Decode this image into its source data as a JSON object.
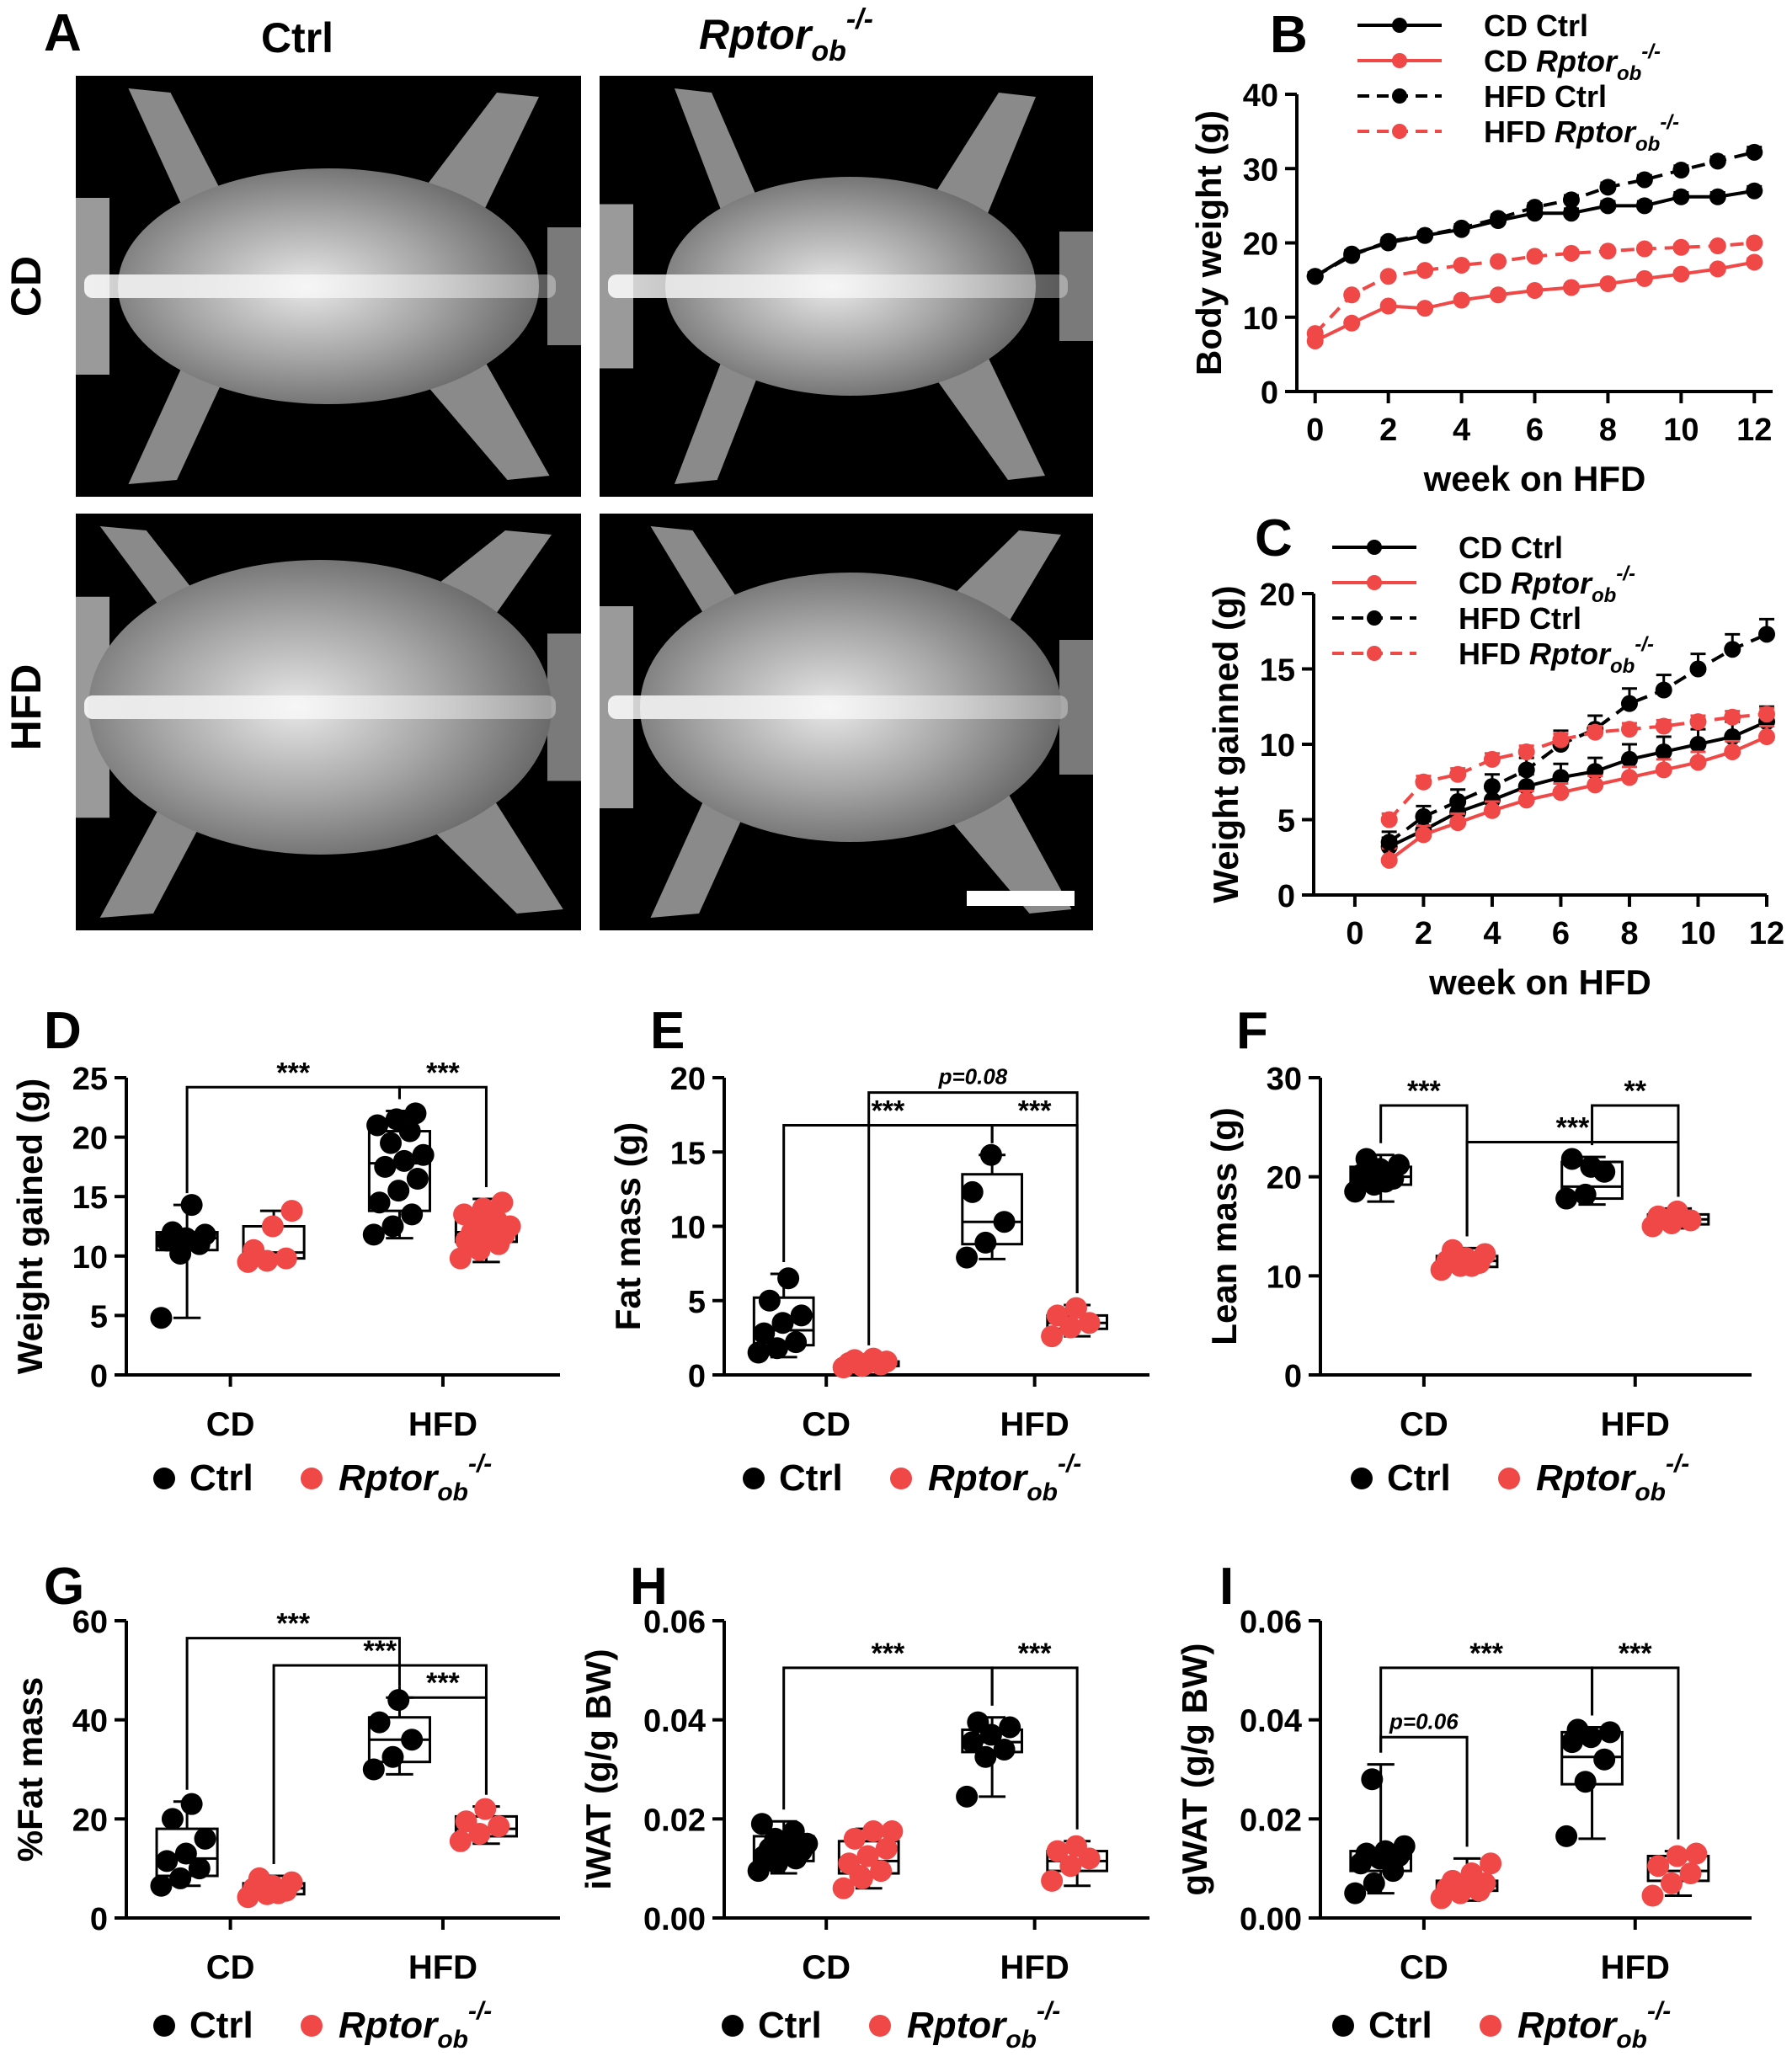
{
  "colors": {
    "ctrl": "#000000",
    "ko": "#f04747",
    "bg": "#ffffff",
    "xray_bg": "#000000"
  },
  "panel_a": {
    "letter": "A",
    "col_ctrl": "Ctrl",
    "col_ko_base": "Rptor",
    "col_ko_sub": "ob",
    "col_ko_sup": "-/-",
    "row_cd": "CD",
    "row_hfd": "HFD"
  },
  "legend": {
    "ctrl": "Ctrl",
    "ko_base": "Rptor",
    "ko_sub": "ob",
    "ko_sup": "-/-",
    "cd_ctrl": "CD  Ctrl",
    "cd_ko_prefix": "CD",
    "hfd_ctrl": "HFD Ctrl",
    "hfd_ko_prefix": "HFD"
  },
  "chart_data": [
    {
      "panel": "B",
      "type": "line",
      "xlabel": "week on HFD",
      "ylabel": "Body weight (g)",
      "xlim": [
        -0.5,
        12.5
      ],
      "ylim": [
        0,
        40
      ],
      "xticks": [
        0,
        2,
        4,
        6,
        8,
        10,
        12
      ],
      "yticks": [
        0,
        10,
        20,
        30,
        40
      ],
      "x": [
        0,
        1,
        2,
        3,
        4,
        5,
        6,
        7,
        8,
        9,
        10,
        11,
        12
      ],
      "series": [
        {
          "name": "CD Ctrl",
          "group": "ctrl",
          "style": "solid",
          "values": [
            15.5,
            18.5,
            20.0,
            21.0,
            21.8,
            23.0,
            24.0,
            24.0,
            25.0,
            25.0,
            26.2,
            26.2,
            27.0
          ],
          "errors": [
            0.5,
            0.5,
            0.5,
            0.5,
            0.5,
            0.6,
            0.7,
            0.6,
            0.6,
            0.6,
            0.6,
            0.6,
            0.6
          ]
        },
        {
          "name": "CD Rptor ob -/-",
          "group": "ko",
          "style": "solid",
          "values": [
            6.8,
            9.2,
            11.5,
            11.2,
            12.3,
            13.0,
            13.6,
            14.0,
            14.5,
            15.2,
            15.8,
            16.5,
            17.4
          ],
          "errors": [
            0.4,
            0.4,
            0.4,
            0.4,
            0.4,
            0.4,
            0.4,
            0.4,
            0.4,
            0.4,
            0.4,
            0.4,
            0.5
          ]
        },
        {
          "name": "HFD Ctrl",
          "group": "ctrl",
          "style": "dashed",
          "values": [
            15.5,
            18.3,
            20.2,
            21.0,
            22.0,
            23.3,
            24.8,
            25.8,
            27.5,
            28.5,
            29.8,
            31.0,
            32.2
          ],
          "errors": [
            0.5,
            0.5,
            0.5,
            0.5,
            0.5,
            0.5,
            0.5,
            0.6,
            0.6,
            0.6,
            0.6,
            0.6,
            0.7
          ]
        },
        {
          "name": "HFD Rptor ob -/-",
          "group": "ko",
          "style": "dashed",
          "values": [
            7.8,
            13.0,
            15.5,
            16.3,
            17.0,
            17.5,
            18.2,
            18.6,
            18.9,
            19.2,
            19.4,
            19.6,
            20.0
          ],
          "errors": [
            0.4,
            0.4,
            0.4,
            0.4,
            0.4,
            0.4,
            0.4,
            0.4,
            0.4,
            0.4,
            0.4,
            0.4,
            0.4
          ]
        }
      ]
    },
    {
      "panel": "C",
      "type": "line",
      "xlabel": "week on HFD",
      "ylabel": "Weight gainned (g)",
      "xlim": [
        -1.2,
        12
      ],
      "ylim": [
        0,
        20
      ],
      "xticks": [
        0,
        2,
        4,
        6,
        8,
        10,
        12
      ],
      "yticks": [
        0,
        5,
        10,
        15,
        20
      ],
      "x": [
        1,
        2,
        3,
        4,
        5,
        6,
        7,
        8,
        9,
        10,
        11,
        12
      ],
      "series": [
        {
          "name": "CD Ctrl",
          "group": "ctrl",
          "style": "solid",
          "values": [
            3.2,
            4.3,
            5.5,
            6.3,
            7.2,
            7.8,
            8.2,
            9.0,
            9.5,
            10.0,
            10.5,
            11.5
          ],
          "errors": [
            0.6,
            0.6,
            0.7,
            0.8,
            0.8,
            0.9,
            0.9,
            1.0,
            1.0,
            1.0,
            1.0,
            1.0
          ]
        },
        {
          "name": "CD Rptor ob -/-",
          "group": "ko",
          "style": "solid",
          "values": [
            2.3,
            4.0,
            4.8,
            5.6,
            6.3,
            6.8,
            7.3,
            7.8,
            8.3,
            8.8,
            9.5,
            10.5
          ],
          "errors": [
            0.8,
            0.6,
            0.6,
            0.6,
            0.6,
            0.6,
            0.6,
            0.7,
            0.7,
            0.7,
            0.7,
            0.7
          ]
        },
        {
          "name": "HFD Ctrl",
          "group": "ctrl",
          "style": "dashed",
          "values": [
            3.5,
            5.2,
            6.2,
            7.2,
            8.3,
            10.0,
            11.0,
            12.7,
            13.6,
            15.0,
            16.3,
            17.3
          ],
          "errors": [
            0.7,
            0.7,
            0.8,
            0.8,
            0.8,
            0.9,
            0.9,
            1.0,
            1.0,
            1.0,
            1.0,
            1.0
          ]
        },
        {
          "name": "HFD Rptor ob -/-",
          "group": "ko",
          "style": "dashed",
          "values": [
            5.0,
            7.5,
            8.0,
            9.0,
            9.5,
            10.3,
            10.8,
            11.0,
            11.2,
            11.5,
            11.8,
            12.0
          ],
          "errors": [
            0.4,
            0.4,
            0.4,
            0.4,
            0.4,
            0.4,
            0.4,
            0.4,
            0.4,
            0.4,
            0.4,
            0.4
          ]
        }
      ]
    },
    {
      "panel": "D",
      "type": "box",
      "ylabel": "Weight gained (g)",
      "ylim": [
        0,
        25
      ],
      "yticks": [
        0,
        5,
        10,
        15,
        20,
        25
      ],
      "tick_format": 0,
      "categories": [
        "CD",
        "HFD"
      ],
      "boxes": [
        {
          "group": "ctrl",
          "category": "CD",
          "min": 4.8,
          "q1": 10.5,
          "median": 11.5,
          "q3": 12.0,
          "max": 14.3,
          "points": [
            4.8,
            10.2,
            11.0,
            11.3,
            11.5,
            11.8,
            12.0,
            14.3
          ]
        },
        {
          "group": "ko",
          "category": "CD",
          "min": 9.5,
          "q1": 9.8,
          "median": 10.3,
          "q3": 12.5,
          "max": 13.8,
          "points": [
            9.5,
            9.6,
            9.8,
            10.5,
            12.5,
            13.8
          ]
        },
        {
          "group": "ctrl",
          "category": "HFD",
          "min": 11.5,
          "q1": 13.8,
          "median": 17.8,
          "q3": 20.5,
          "max": 22.2,
          "points": [
            11.8,
            12.5,
            13.5,
            14.5,
            15.5,
            16.5,
            17.5,
            18.0,
            18.5,
            19.5,
            20.5,
            21.0,
            21.5,
            22.0
          ]
        },
        {
          "group": "ko",
          "category": "HFD",
          "min": 9.5,
          "q1": 11.2,
          "median": 12.0,
          "q3": 13.0,
          "max": 14.8,
          "points": [
            9.8,
            10.5,
            11.0,
            11.3,
            11.6,
            11.8,
            12.0,
            12.2,
            12.5,
            12.8,
            13.0,
            13.5,
            14.0,
            14.5
          ]
        }
      ],
      "brackets": [
        {
          "from": 0,
          "to": 2,
          "y": 24.2,
          "label": "***"
        },
        {
          "from": 2,
          "to": 3,
          "y": 24.2,
          "label": "***"
        }
      ]
    },
    {
      "panel": "E",
      "type": "box",
      "ylabel": "Fat mass (g)",
      "ylim": [
        0,
        20
      ],
      "yticks": [
        0,
        5,
        10,
        15,
        20
      ],
      "tick_format": 0,
      "categories": [
        "CD",
        "HFD"
      ],
      "boxes": [
        {
          "group": "ctrl",
          "category": "CD",
          "min": 1.2,
          "q1": 2.0,
          "median": 3.0,
          "q3": 5.2,
          "max": 6.8,
          "points": [
            1.5,
            1.8,
            2.2,
            2.8,
            3.5,
            4.0,
            5.0,
            6.5
          ]
        },
        {
          "group": "ko",
          "category": "CD",
          "min": 0.4,
          "q1": 0.6,
          "median": 0.8,
          "q3": 0.9,
          "max": 1.2,
          "points": [
            0.5,
            0.6,
            0.7,
            0.8,
            0.8,
            0.9,
            1.0,
            1.1
          ]
        },
        {
          "group": "ctrl",
          "category": "HFD",
          "min": 7.8,
          "q1": 8.8,
          "median": 10.3,
          "q3": 13.5,
          "max": 14.8,
          "points": [
            7.9,
            8.9,
            10.3,
            12.3,
            14.8
          ]
        },
        {
          "group": "ko",
          "category": "HFD",
          "min": 2.6,
          "q1": 3.1,
          "median": 3.5,
          "q3": 4.0,
          "max": 4.7,
          "points": [
            2.6,
            3.2,
            3.5,
            4.0,
            4.5
          ]
        }
      ],
      "brackets": [
        {
          "from": 0,
          "to": 2,
          "y": 16.8,
          "label": "***"
        },
        {
          "from": 2,
          "to": 3,
          "y": 16.8,
          "label": "***"
        },
        {
          "from": 1,
          "to": 3,
          "y": 19.0,
          "label": "p=0.08"
        }
      ]
    },
    {
      "panel": "F",
      "type": "box",
      "ylabel": "Lean mass (g)",
      "ylim": [
        0,
        30
      ],
      "yticks": [
        0,
        10,
        20,
        30
      ],
      "tick_format": 0,
      "categories": [
        "CD",
        "HFD"
      ],
      "boxes": [
        {
          "group": "ctrl",
          "category": "CD",
          "min": 17.5,
          "q1": 19.2,
          "median": 20.0,
          "q3": 21.0,
          "max": 22.2,
          "points": [
            18.5,
            19.2,
            19.8,
            20.2,
            20.8,
            21.2,
            21.8,
            19.5
          ]
        },
        {
          "group": "ko",
          "category": "CD",
          "min": 10.4,
          "q1": 10.9,
          "median": 11.5,
          "q3": 12.0,
          "max": 12.8,
          "points": [
            10.6,
            11.0,
            11.3,
            11.5,
            11.8,
            12.2,
            12.6,
            11.0
          ]
        },
        {
          "group": "ctrl",
          "category": "HFD",
          "min": 17.2,
          "q1": 17.8,
          "median": 19.0,
          "q3": 21.5,
          "max": 22.0,
          "points": [
            17.8,
            18.2,
            20.5,
            21.8,
            21.0
          ]
        },
        {
          "group": "ko",
          "category": "HFD",
          "min": 14.8,
          "q1": 15.2,
          "median": 15.7,
          "q3": 16.2,
          "max": 16.8,
          "points": [
            15.0,
            15.3,
            15.6,
            16.0,
            16.5
          ]
        }
      ],
      "brackets": [
        {
          "from": 0,
          "to": 1,
          "y": 27.2,
          "label": "***"
        },
        {
          "from": 2,
          "to": 3,
          "y": 27.2,
          "label": "**"
        },
        {
          "from": 1,
          "to": 3,
          "y": 23.5,
          "label": "***"
        }
      ]
    },
    {
      "panel": "G",
      "type": "box",
      "ylabel": "%Fat mass",
      "ylim": [
        0,
        60
      ],
      "yticks": [
        0,
        20,
        40,
        60
      ],
      "tick_format": 0,
      "categories": [
        "CD",
        "HFD"
      ],
      "boxes": [
        {
          "group": "ctrl",
          "category": "CD",
          "min": 6.5,
          "q1": 8.5,
          "median": 12.0,
          "q3": 18.0,
          "max": 23.5,
          "points": [
            6.5,
            8.0,
            10.0,
            11.5,
            13.0,
            16.0,
            20.0,
            23.0
          ]
        },
        {
          "group": "ko",
          "category": "CD",
          "min": 4.0,
          "q1": 4.8,
          "median": 6.0,
          "q3": 7.0,
          "max": 8.5,
          "points": [
            4.2,
            4.8,
            5.5,
            6.0,
            6.5,
            7.2,
            8.0,
            5.0
          ]
        },
        {
          "group": "ctrl",
          "category": "HFD",
          "min": 29.0,
          "q1": 31.5,
          "median": 36.0,
          "q3": 40.5,
          "max": 44.5,
          "points": [
            30.0,
            32.5,
            36.0,
            39.5,
            44.0
          ]
        },
        {
          "group": "ko",
          "category": "HFD",
          "min": 15.0,
          "q1": 16.5,
          "median": 18.0,
          "q3": 20.5,
          "max": 22.5,
          "points": [
            15.5,
            17.0,
            18.5,
            19.5,
            22.0
          ]
        }
      ],
      "brackets": [
        {
          "from": 0,
          "to": 2,
          "y": 56.5,
          "label": "***"
        },
        {
          "from": 1,
          "to": 3,
          "y": 51.0,
          "label": "***"
        },
        {
          "from": 2,
          "to": 3,
          "y": 44.5,
          "label": "***"
        }
      ]
    },
    {
      "panel": "H",
      "type": "box",
      "ylabel": "iWAT (g/g BW)",
      "ylim": [
        0,
        0.06
      ],
      "yticks": [
        0,
        0.02,
        0.04,
        0.06
      ],
      "tick_format": 2,
      "categories": [
        "CD",
        "HFD"
      ],
      "boxes": [
        {
          "group": "ctrl",
          "category": "CD",
          "min": 0.009,
          "q1": 0.0115,
          "median": 0.0135,
          "q3": 0.0165,
          "max": 0.0195,
          "points": [
            0.0095,
            0.011,
            0.012,
            0.0125,
            0.013,
            0.0135,
            0.014,
            0.0145,
            0.015,
            0.016,
            0.0175,
            0.019
          ]
        },
        {
          "group": "ko",
          "category": "CD",
          "min": 0.006,
          "q1": 0.009,
          "median": 0.0115,
          "q3": 0.0155,
          "max": 0.018,
          "points": [
            0.006,
            0.008,
            0.0095,
            0.011,
            0.0125,
            0.014,
            0.016,
            0.0175,
            0.0175,
            0.0085
          ]
        },
        {
          "group": "ctrl",
          "category": "HFD",
          "min": 0.0245,
          "q1": 0.0335,
          "median": 0.0355,
          "q3": 0.038,
          "max": 0.0405,
          "points": [
            0.0245,
            0.0325,
            0.034,
            0.0355,
            0.037,
            0.0385,
            0.0395
          ]
        },
        {
          "group": "ko",
          "category": "HFD",
          "min": 0.0065,
          "q1": 0.0095,
          "median": 0.0115,
          "q3": 0.0135,
          "max": 0.0155,
          "points": [
            0.0075,
            0.0105,
            0.012,
            0.0135,
            0.0145
          ]
        }
      ],
      "brackets": [
        {
          "from": 0,
          "to": 2,
          "y": 0.0505,
          "label": "***"
        },
        {
          "from": 2,
          "to": 3,
          "y": 0.0505,
          "label": "***"
        }
      ]
    },
    {
      "panel": "I",
      "type": "box",
      "ylabel": "gWAT (g/g BW)",
      "ylim": [
        0,
        0.06
      ],
      "yticks": [
        0,
        0.02,
        0.04,
        0.06
      ],
      "tick_format": 2,
      "categories": [
        "CD",
        "HFD"
      ],
      "boxes": [
        {
          "group": "ctrl",
          "category": "CD",
          "min": 0.005,
          "q1": 0.0095,
          "median": 0.012,
          "q3": 0.0135,
          "max": 0.031,
          "points": [
            0.005,
            0.007,
            0.0095,
            0.011,
            0.012,
            0.0125,
            0.013,
            0.0135,
            0.0145,
            0.028
          ]
        },
        {
          "group": "ko",
          "category": "CD",
          "min": 0.0035,
          "q1": 0.0055,
          "median": 0.0065,
          "q3": 0.0075,
          "max": 0.012,
          "points": [
            0.004,
            0.005,
            0.0055,
            0.006,
            0.0065,
            0.007,
            0.0075,
            0.009,
            0.011
          ]
        },
        {
          "group": "ctrl",
          "category": "HFD",
          "min": 0.016,
          "q1": 0.027,
          "median": 0.0325,
          "q3": 0.0375,
          "max": 0.0385,
          "points": [
            0.0165,
            0.0275,
            0.032,
            0.0355,
            0.0365,
            0.0375,
            0.038
          ]
        },
        {
          "group": "ko",
          "category": "HFD",
          "min": 0.0045,
          "q1": 0.0075,
          "median": 0.0095,
          "q3": 0.0125,
          "max": 0.0135,
          "points": [
            0.0045,
            0.007,
            0.009,
            0.0105,
            0.0125,
            0.013
          ]
        }
      ],
      "brackets": [
        {
          "from": 0,
          "to": 2,
          "y": 0.0505,
          "label": "***"
        },
        {
          "from": 2,
          "to": 3,
          "y": 0.0505,
          "label": "***"
        },
        {
          "from": 0,
          "to": 1,
          "y": 0.0365,
          "label": "p=0.06"
        }
      ]
    }
  ]
}
